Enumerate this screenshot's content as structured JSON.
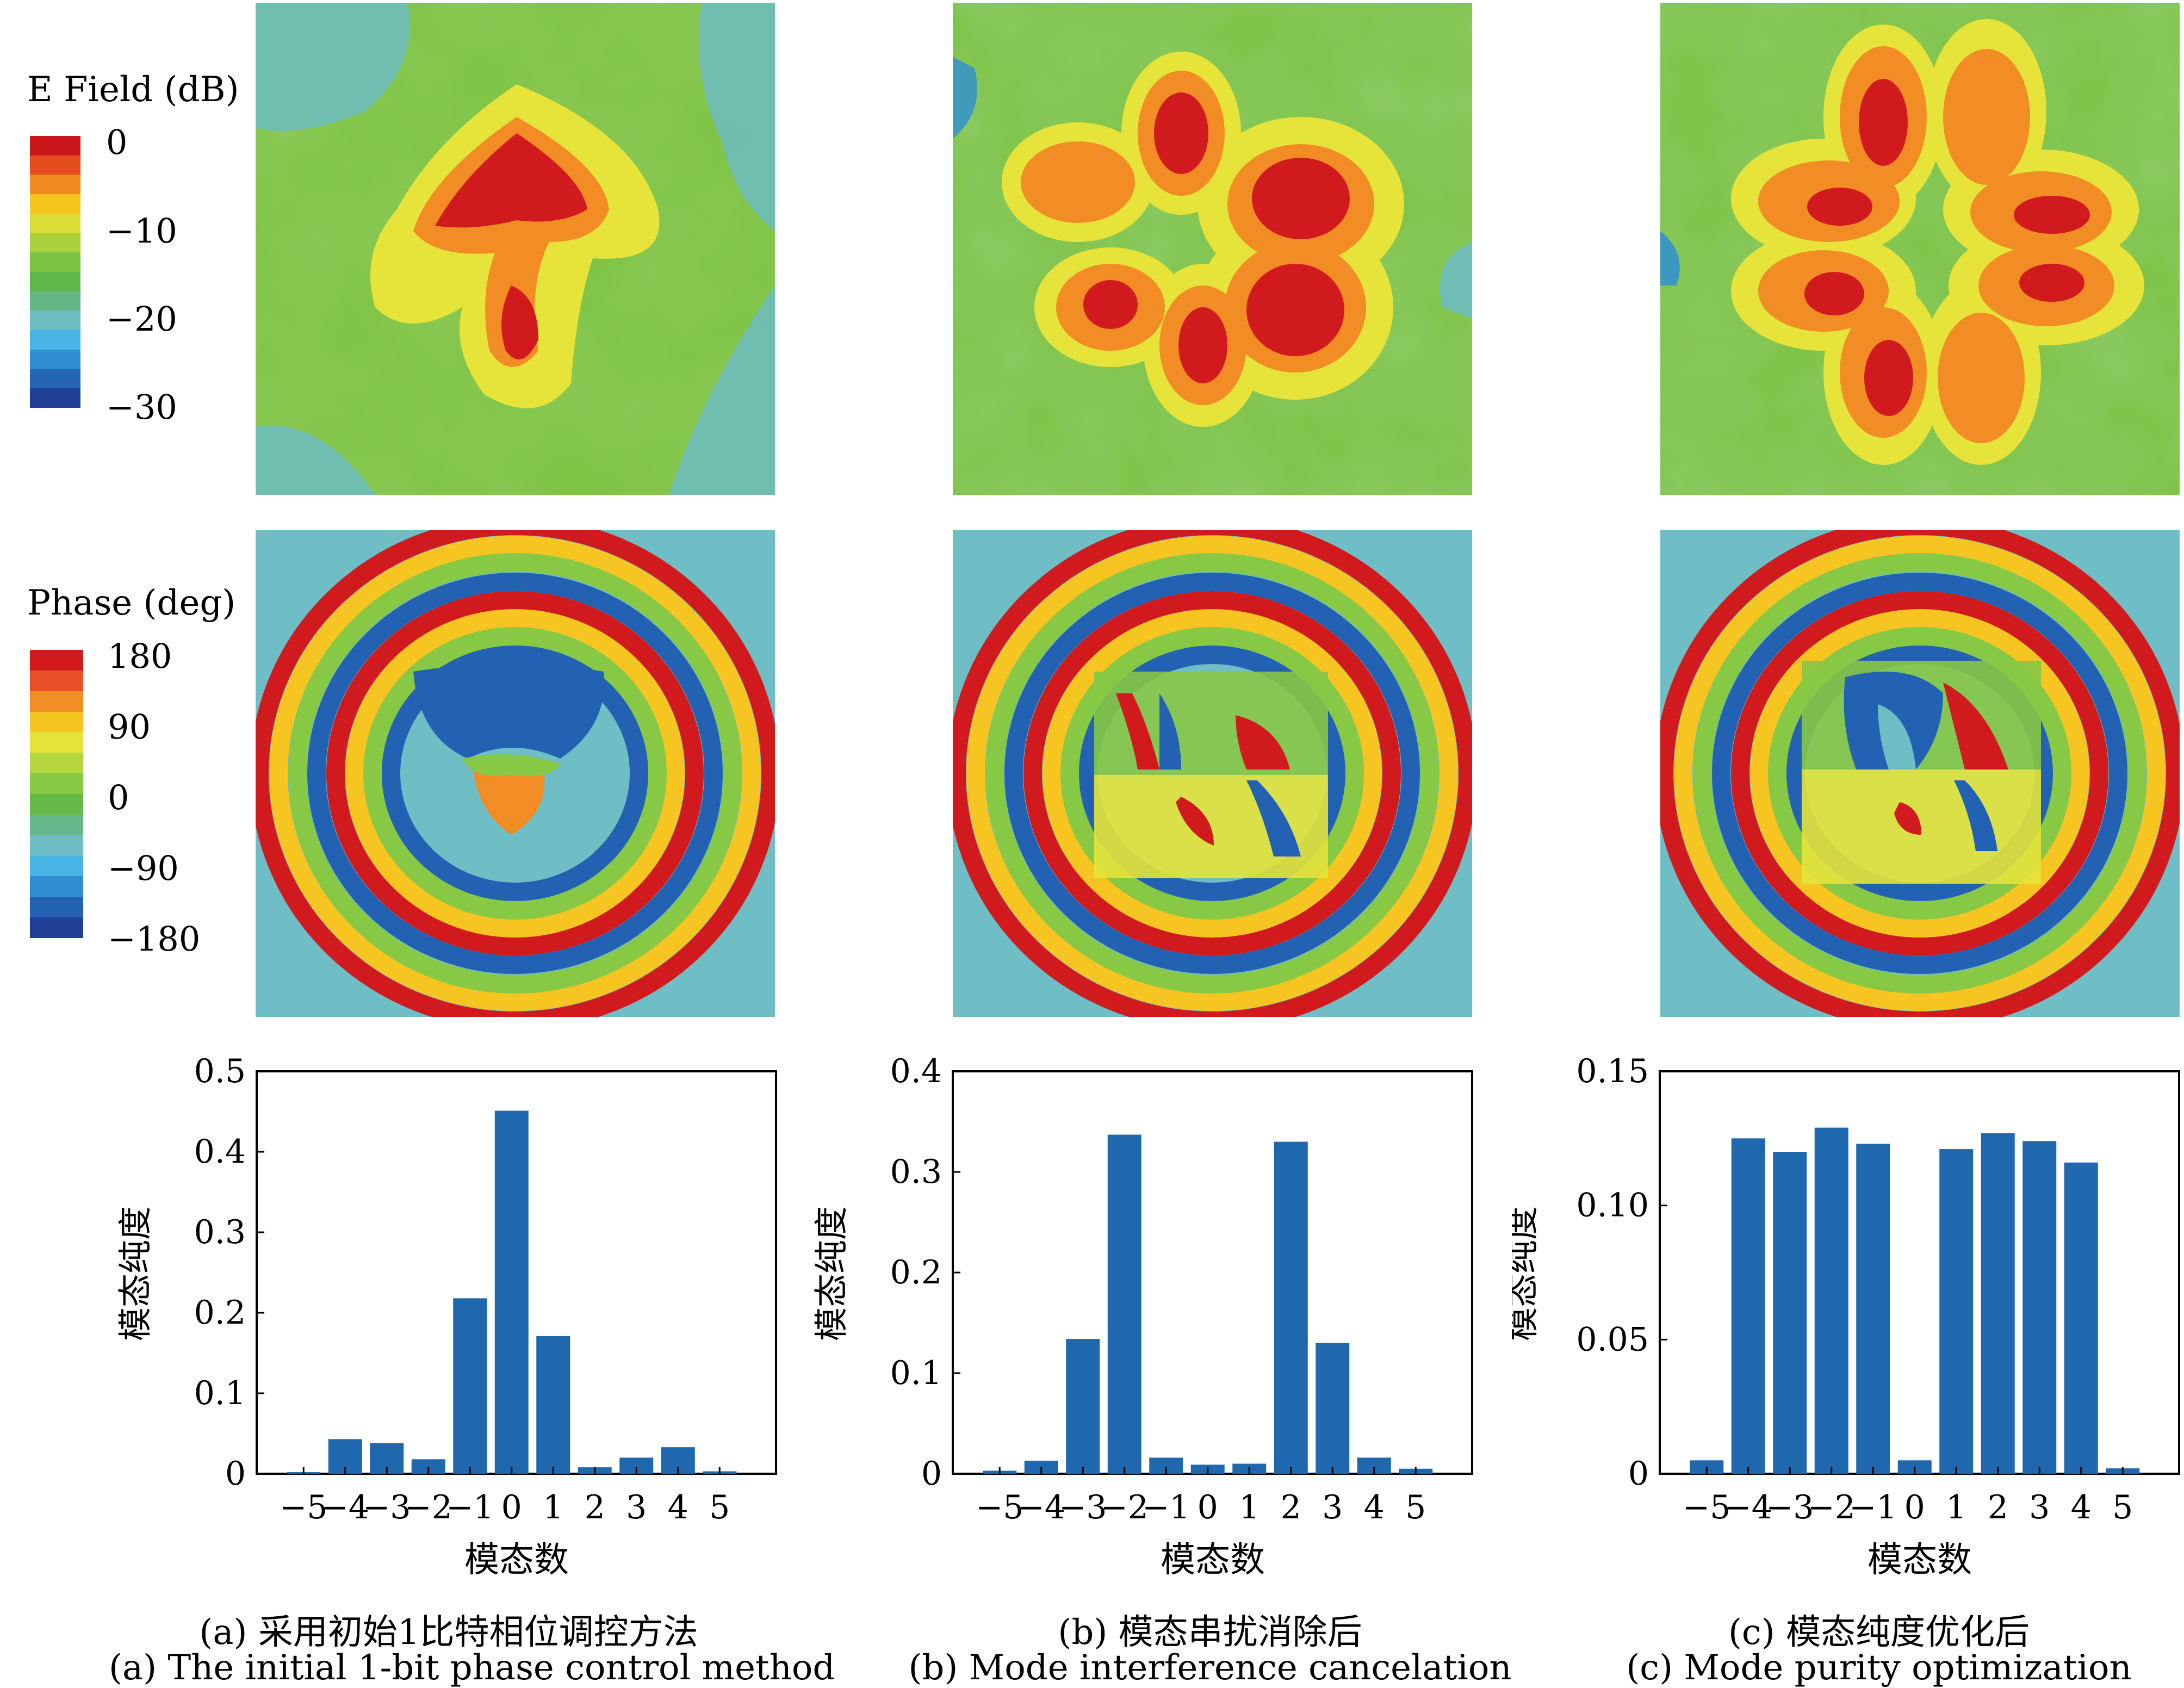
{
  "legend_efield": {
    "title": "E Field (dB)",
    "ticks": [
      "0",
      "−10",
      "−20",
      "−30"
    ]
  },
  "legend_phase": {
    "title": "Phase (deg)",
    "ticks": [
      "180",
      "90",
      "0",
      "−90",
      "−180"
    ]
  },
  "colors": {
    "efield_scale": [
      "#c9171b",
      "#e54d1f",
      "#f08a21",
      "#f5c51e",
      "#d9dd35",
      "#a9d13c",
      "#7cc242",
      "#5fb64a",
      "#63b784",
      "#6cbcc1",
      "#47b5e6",
      "#2f8fd1",
      "#2464b4",
      "#203f96"
    ],
    "phase_scale": [
      "#d11a1d",
      "#e8502a",
      "#f28c25",
      "#f6c521",
      "#e6e43a",
      "#b6d63f",
      "#87c845",
      "#66ba47",
      "#68b88e",
      "#6fbec6",
      "#48b4e6",
      "#2f8cd1",
      "#2362b3",
      "#1f3f96"
    ],
    "bar": "#1f68ae"
  },
  "captions": {
    "a_cn": "(a) 采用初始1比特相位调控方法",
    "a_en": "(a) The initial 1-bit phase control method",
    "b_cn": "(b) 模态串扰消除后",
    "b_en": "(b) Mode interference cancelation",
    "c_cn": "(c) 模态纯度优化后",
    "c_en": "(c) Mode purity optimization"
  },
  "chart_data": [
    {
      "type": "bar",
      "categories": [
        "−5",
        "−4",
        "−3",
        "−2",
        "−1",
        "0",
        "1",
        "2",
        "3",
        "4",
        "5"
      ],
      "values": [
        0.002,
        0.043,
        0.038,
        0.018,
        0.218,
        0.451,
        0.171,
        0.008,
        0.02,
        0.033,
        0.003
      ],
      "ylabel": "模态纯度",
      "xlabel": "模态数",
      "ylim": [
        0,
        0.5
      ],
      "yticks": [
        "0",
        "0.1",
        "0.2",
        "0.3",
        "0.4",
        "0.5"
      ]
    },
    {
      "type": "bar",
      "categories": [
        "−5",
        "−4",
        "−3",
        "−2",
        "−1",
        "0",
        "1",
        "2",
        "3",
        "4",
        "5"
      ],
      "values": [
        0.003,
        0.013,
        0.134,
        0.337,
        0.016,
        0.009,
        0.01,
        0.33,
        0.13,
        0.016,
        0.005
      ],
      "ylabel": "模态纯度",
      "xlabel": "模态数",
      "ylim": [
        0,
        0.4
      ],
      "yticks": [
        "0",
        "0.1",
        "0.2",
        "0.3",
        "0.4"
      ]
    },
    {
      "type": "bar",
      "categories": [
        "−5",
        "−4",
        "−3",
        "−2",
        "−1",
        "0",
        "1",
        "2",
        "3",
        "4",
        "5"
      ],
      "values": [
        0.005,
        0.125,
        0.12,
        0.129,
        0.123,
        0.005,
        0.121,
        0.127,
        0.124,
        0.116,
        0.002
      ],
      "ylabel": "模态纯度",
      "xlabel": "模态数",
      "ylim": [
        0,
        0.15
      ],
      "yticks": [
        "0",
        "0.05",
        "0.10",
        "0.15"
      ]
    }
  ]
}
